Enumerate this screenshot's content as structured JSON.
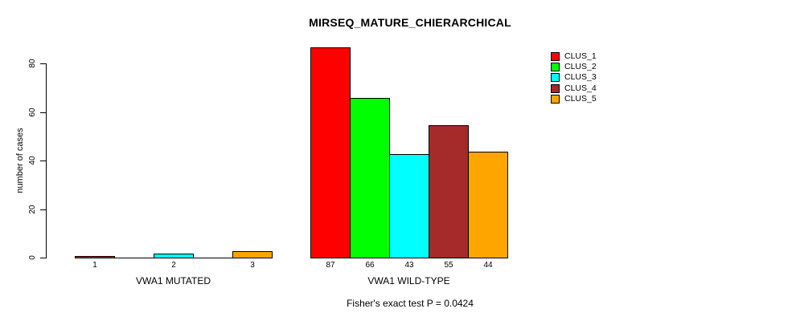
{
  "title": "MIRSEQ_MATURE_CHIERARCHICAL",
  "annotation": "Fisher's exact test P = 0.0424",
  "y_axis_label": "number of cases",
  "chart_data": {
    "type": "bar",
    "title": "MIRSEQ_MATURE_CHIERARCHICAL",
    "xlabel": "",
    "ylabel": "number of cases",
    "ylim": [
      0,
      87
    ],
    "yticks": [
      0,
      20,
      40,
      60,
      80
    ],
    "grid": false,
    "legend_position": "top-right",
    "series": [
      {
        "name": "CLUS_1",
        "color": "#FF0000"
      },
      {
        "name": "CLUS_2",
        "color": "#00FF00"
      },
      {
        "name": "CLUS_3",
        "color": "#00FFFF"
      },
      {
        "name": "CLUS_4",
        "color": "#A52A2A"
      },
      {
        "name": "CLUS_5",
        "color": "#FFA500"
      }
    ],
    "groups": [
      {
        "label": "VWA1 MUTATED",
        "values": [
          1,
          0,
          2,
          0,
          3
        ]
      },
      {
        "label": "VWA1 WILD-TYPE",
        "values": [
          87,
          66,
          43,
          55,
          44
        ]
      }
    ],
    "bar_value_labels_shown_for_nonzero_only": true,
    "annotation": "Fisher's exact test P = 0.0424"
  }
}
